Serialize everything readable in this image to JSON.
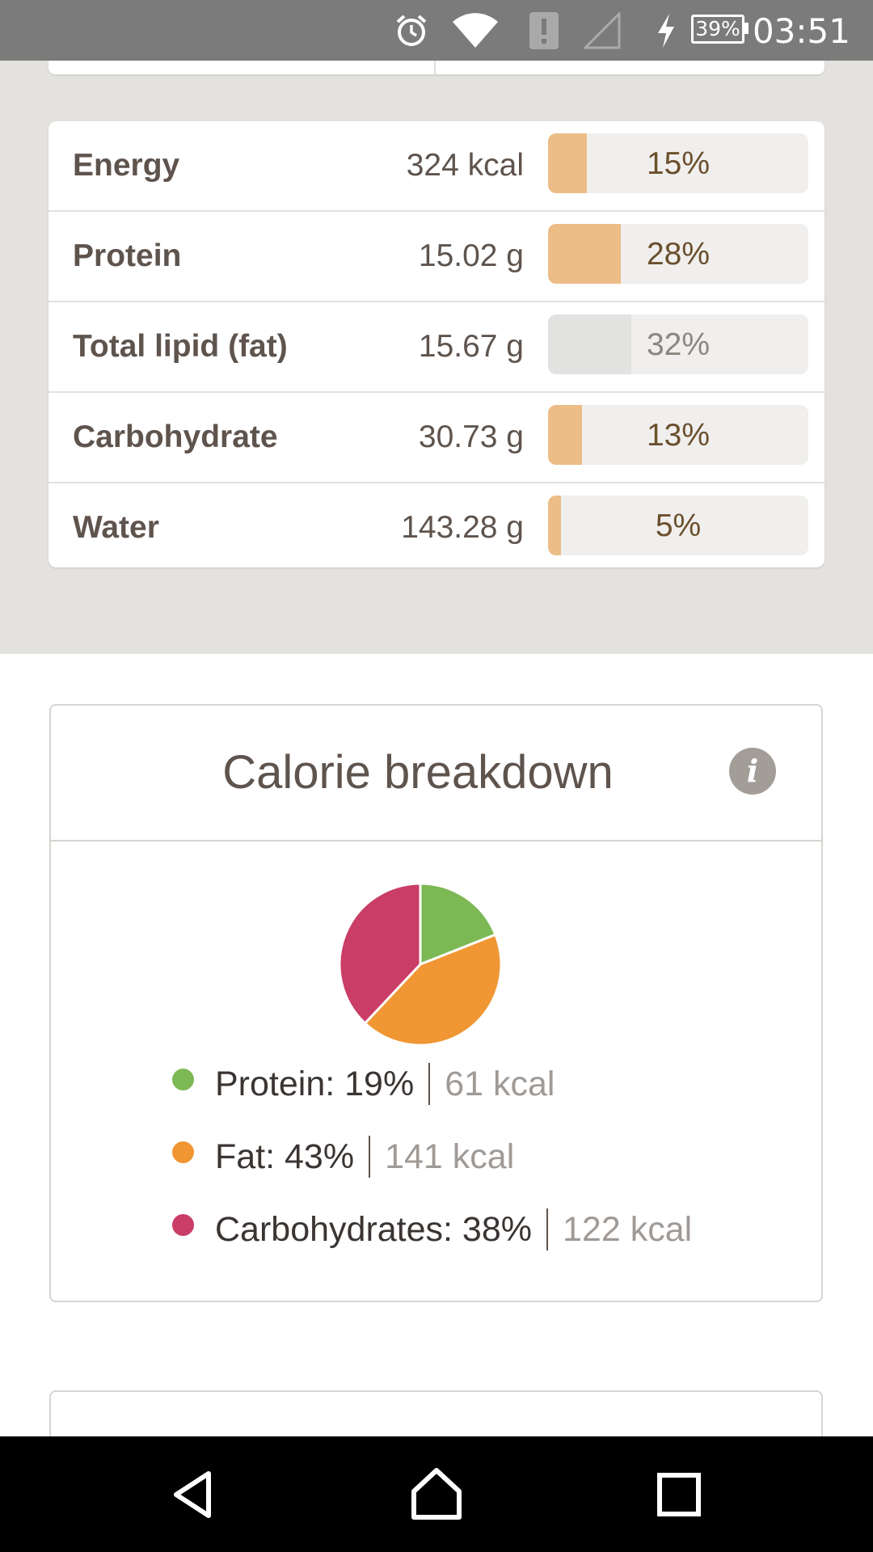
{
  "status_bar": {
    "time": "03:51",
    "battery": "39%",
    "icons": [
      "alarm-icon",
      "wifi-icon",
      "notification-alert-icon",
      "cell-signal-icon",
      "charging-icon",
      "battery-icon"
    ]
  },
  "nutrients": [
    {
      "name": "Energy",
      "value": "324 kcal",
      "percent_label": "15%",
      "percent": 15,
      "style": "accent"
    },
    {
      "name": "Protein",
      "value": "15.02 g",
      "percent_label": "28%",
      "percent": 28,
      "style": "accent"
    },
    {
      "name": "Total lipid (fat)",
      "value": "15.67 g",
      "percent_label": "32%",
      "percent": 32,
      "style": "muted"
    },
    {
      "name": "Carbohydrate",
      "value": "30.73 g",
      "percent_label": "13%",
      "percent": 13,
      "style": "accent"
    },
    {
      "name": "Water",
      "value": "143.28 g",
      "percent_label": "5%",
      "percent": 5,
      "style": "accent"
    }
  ],
  "colors": {
    "bar_fill": "#ecbd87",
    "bar_fill_muted": "#e2e2e0",
    "protein": "#7cb854",
    "fat": "#f09633",
    "carbohydrates": "#c93d67"
  },
  "calorie_breakdown": {
    "title": "Calorie breakdown",
    "info_icon": "info-icon",
    "legend": [
      {
        "label": "Protein: 19%",
        "kcal": "61 kcal"
      },
      {
        "label": "Fat: 43%",
        "kcal": "141 kcal"
      },
      {
        "label": "Carbohydrates: 38%",
        "kcal": "122 kcal"
      }
    ]
  },
  "chart_data": {
    "type": "pie",
    "categories": [
      "Protein",
      "Fat",
      "Carbohydrates"
    ],
    "values": [
      19,
      43,
      38
    ],
    "title": "Calorie breakdown",
    "colors": [
      "#7cb854",
      "#f09633",
      "#c93d67"
    ]
  },
  "nav_bar": {
    "buttons": [
      "back-icon",
      "home-icon",
      "recents-icon"
    ]
  }
}
